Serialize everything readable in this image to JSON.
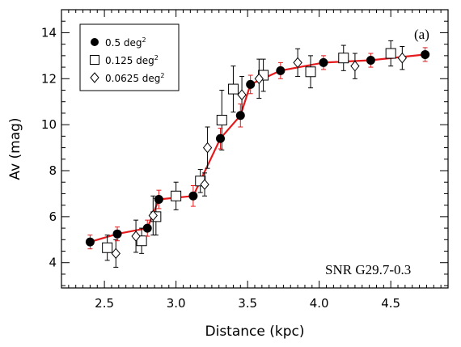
{
  "chart_data": {
    "type": "scatter",
    "xlabel": "Distance (kpc)",
    "ylabel": "Av (mag)",
    "xlim": [
      2.2,
      4.9
    ],
    "ylim": [
      2.9,
      15.0
    ],
    "xticks": [
      2.5,
      3.0,
      3.5,
      4.0,
      4.5
    ],
    "xtick_labels": [
      "2.5",
      "3.0",
      "3.5",
      "4.0",
      "4.5"
    ],
    "yticks": [
      4,
      6,
      8,
      10,
      12,
      14
    ],
    "ytick_labels": [
      "4",
      "6",
      "8",
      "10",
      "12",
      "14"
    ],
    "panel_label": "(a)",
    "annotation": "SNR G29.7-0.3",
    "legend": {
      "placement": "top-left",
      "entries": [
        {
          "label": "0.5 deg",
          "sup": "2",
          "marker": "filled-circle"
        },
        {
          "label": "0.125 deg",
          "sup": "2",
          "marker": "open-square"
        },
        {
          "label": "0.0625 deg",
          "sup": "2",
          "marker": "open-diamond"
        }
      ]
    },
    "fit_line_color": "#e41a1c",
    "series": [
      {
        "marker": "filled-circle",
        "error_color": "#e41a1c",
        "points": [
          {
            "x": 2.4,
            "y": 4.9,
            "err": 0.3
          },
          {
            "x": 2.59,
            "y": 5.25,
            "err": 0.3
          },
          {
            "x": 2.8,
            "y": 5.5,
            "err": 0.35
          },
          {
            "x": 2.88,
            "y": 6.75,
            "err": 0.4
          },
          {
            "x": 3.12,
            "y": 6.9,
            "err": 0.45
          },
          {
            "x": 3.31,
            "y": 9.4,
            "err": 0.45
          },
          {
            "x": 3.45,
            "y": 10.4,
            "err": 0.5
          },
          {
            "x": 3.52,
            "y": 11.75,
            "err": 0.4
          },
          {
            "x": 3.73,
            "y": 12.35,
            "err": 0.35
          },
          {
            "x": 4.03,
            "y": 12.7,
            "err": 0.3
          },
          {
            "x": 4.36,
            "y": 12.8,
            "err": 0.3
          },
          {
            "x": 4.74,
            "y": 13.05,
            "err": 0.3
          }
        ]
      },
      {
        "marker": "open-square",
        "error_color": "#000000",
        "points": [
          {
            "x": 2.52,
            "y": 4.65,
            "err": 0.55
          },
          {
            "x": 2.76,
            "y": 4.95,
            "err": 0.55
          },
          {
            "x": 2.86,
            "y": 6.0,
            "err": 0.8
          },
          {
            "x": 3.0,
            "y": 6.9,
            "err": 0.6
          },
          {
            "x": 3.17,
            "y": 7.55,
            "err": 0.5
          },
          {
            "x": 3.32,
            "y": 10.2,
            "err": 1.3
          },
          {
            "x": 3.4,
            "y": 11.55,
            "err": 1.0
          },
          {
            "x": 3.61,
            "y": 12.15,
            "err": 0.7
          },
          {
            "x": 3.94,
            "y": 12.3,
            "err": 0.7
          },
          {
            "x": 4.17,
            "y": 12.9,
            "err": 0.55
          },
          {
            "x": 4.5,
            "y": 13.1,
            "err": 0.55
          }
        ]
      },
      {
        "marker": "open-diamond",
        "error_color": "#000000",
        "points": [
          {
            "x": 2.58,
            "y": 4.4,
            "err": 0.6
          },
          {
            "x": 2.72,
            "y": 5.15,
            "err": 0.7
          },
          {
            "x": 2.84,
            "y": 6.05,
            "err": 0.85
          },
          {
            "x": 3.2,
            "y": 7.4,
            "err": 0.5
          },
          {
            "x": 3.22,
            "y": 9.0,
            "err": 0.9
          },
          {
            "x": 3.46,
            "y": 11.3,
            "err": 0.8
          },
          {
            "x": 3.58,
            "y": 12.0,
            "err": 0.85
          },
          {
            "x": 3.85,
            "y": 12.7,
            "err": 0.6
          },
          {
            "x": 4.25,
            "y": 12.55,
            "err": 0.55
          },
          {
            "x": 4.58,
            "y": 12.9,
            "err": 0.5
          }
        ]
      }
    ]
  }
}
